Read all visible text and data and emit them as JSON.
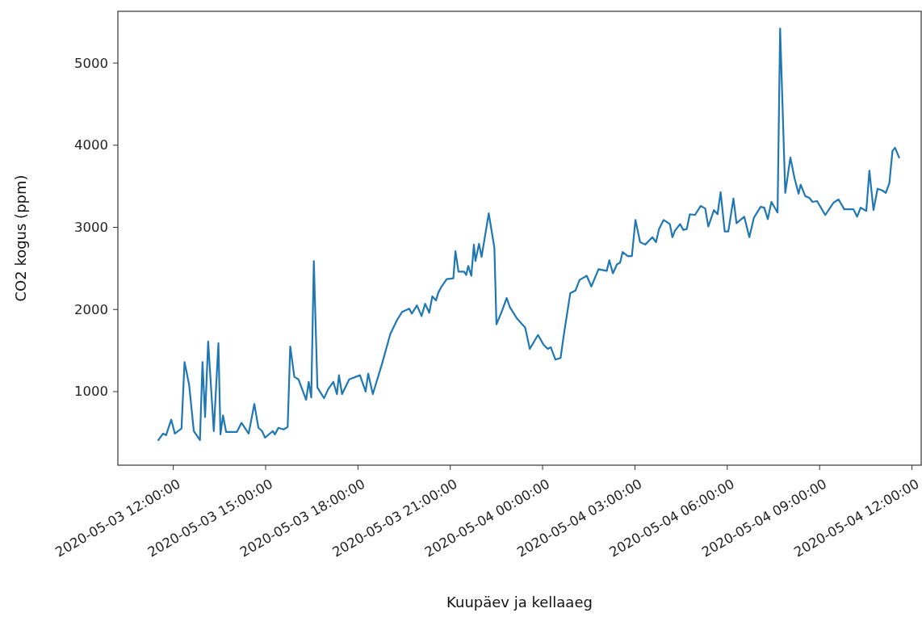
{
  "chart_data": {
    "type": "line",
    "xlabel": "Kuupäev ja kellaaeg",
    "ylabel": "CO2 kogus (ppm)",
    "x": [
      "2020-05-03T11:31",
      "2020-05-03T11:40",
      "2020-05-03T11:46",
      "2020-05-03T11:56",
      "2020-05-03T12:03",
      "2020-05-03T12:16",
      "2020-05-03T12:22",
      "2020-05-03T12:31",
      "2020-05-03T12:40",
      "2020-05-03T12:52",
      "2020-05-03T12:57",
      "2020-05-03T13:02",
      "2020-05-03T13:08",
      "2020-05-03T13:19",
      "2020-05-03T13:28",
      "2020-05-03T13:32",
      "2020-05-03T13:37",
      "2020-05-03T13:43",
      "2020-05-03T14:04",
      "2020-05-03T14:13",
      "2020-05-03T14:27",
      "2020-05-03T14:38",
      "2020-05-03T14:46",
      "2020-05-03T14:53",
      "2020-05-03T14:59",
      "2020-05-03T15:14",
      "2020-05-03T15:18",
      "2020-05-03T15:25",
      "2020-05-03T15:35",
      "2020-05-03T15:43",
      "2020-05-03T15:48",
      "2020-05-03T15:56",
      "2020-05-03T16:04",
      "2020-05-03T16:19",
      "2020-05-03T16:24",
      "2020-05-03T16:29",
      "2020-05-03T16:34",
      "2020-05-03T16:41",
      "2020-05-03T16:54",
      "2020-05-03T17:02",
      "2020-05-03T17:12",
      "2020-05-03T17:19",
      "2020-05-03T17:23",
      "2020-05-03T17:29",
      "2020-05-03T17:43",
      "2020-05-03T18:04",
      "2020-05-03T18:15",
      "2020-05-03T18:20",
      "2020-05-03T18:29",
      "2020-05-03T18:47",
      "2020-05-03T19:03",
      "2020-05-03T19:16",
      "2020-05-03T19:26",
      "2020-05-03T19:40",
      "2020-05-03T19:45",
      "2020-05-03T19:55",
      "2020-05-03T20:04",
      "2020-05-03T20:11",
      "2020-05-03T20:19",
      "2020-05-03T20:25",
      "2020-05-03T20:32",
      "2020-05-03T20:37",
      "2020-05-03T20:43",
      "2020-05-03T20:53",
      "2020-05-03T21:06",
      "2020-05-03T21:10",
      "2020-05-03T21:16",
      "2020-05-03T21:27",
      "2020-05-03T21:31",
      "2020-05-03T21:35",
      "2020-05-03T21:41",
      "2020-05-03T21:46",
      "2020-05-03T21:49",
      "2020-05-03T21:56",
      "2020-05-03T22:01",
      "2020-05-03T22:15",
      "2020-05-03T22:26",
      "2020-05-03T22:30",
      "2020-05-03T22:40",
      "2020-05-03T22:50",
      "2020-05-03T22:56",
      "2020-05-03T23:09",
      "2020-05-03T23:20",
      "2020-05-03T23:26",
      "2020-05-03T23:35",
      "2020-05-03T23:51",
      "2020-05-04T00:02",
      "2020-05-04T00:10",
      "2020-05-04T00:16",
      "2020-05-04T00:25",
      "2020-05-04T00:35",
      "2020-05-04T00:42",
      "2020-05-04T00:54",
      "2020-05-04T01:04",
      "2020-05-04T01:12",
      "2020-05-04T01:26",
      "2020-05-04T01:35",
      "2020-05-04T01:49",
      "2020-05-04T01:57",
      "2020-05-04T02:05",
      "2020-05-04T02:10",
      "2020-05-04T02:17",
      "2020-05-04T02:25",
      "2020-05-04T02:31",
      "2020-05-04T02:36",
      "2020-05-04T02:46",
      "2020-05-04T02:54",
      "2020-05-04T03:01",
      "2020-05-04T03:10",
      "2020-05-04T03:20",
      "2020-05-04T03:34",
      "2020-05-04T03:41",
      "2020-05-04T03:47",
      "2020-05-04T03:56",
      "2020-05-04T04:08",
      "2020-05-04T04:13",
      "2020-05-04T04:18",
      "2020-05-04T04:28",
      "2020-05-04T04:34",
      "2020-05-04T04:41",
      "2020-05-04T04:47",
      "2020-05-04T04:57",
      "2020-05-04T05:08",
      "2020-05-04T05:17",
      "2020-05-04T05:23",
      "2020-05-04T05:34",
      "2020-05-04T05:41",
      "2020-05-04T05:47",
      "2020-05-04T05:55",
      "2020-05-04T06:02",
      "2020-05-04T06:12",
      "2020-05-04T06:18",
      "2020-05-04T06:33",
      "2020-05-04T06:43",
      "2020-05-04T06:52",
      "2020-05-04T07:05",
      "2020-05-04T07:12",
      "2020-05-04T07:19",
      "2020-05-04T07:26",
      "2020-05-04T07:38",
      "2020-05-04T07:43",
      "2020-05-04T07:53",
      "2020-05-04T08:03",
      "2020-05-04T08:11",
      "2020-05-04T08:19",
      "2020-05-04T08:23",
      "2020-05-04T08:32",
      "2020-05-04T08:40",
      "2020-05-04T08:46",
      "2020-05-04T08:55",
      "2020-05-04T09:11",
      "2020-05-04T09:27",
      "2020-05-04T09:37",
      "2020-05-04T09:48",
      "2020-05-04T10:06",
      "2020-05-04T10:13",
      "2020-05-04T10:20",
      "2020-05-04T10:31",
      "2020-05-04T10:37",
      "2020-05-04T10:45",
      "2020-05-04T10:53",
      "2020-05-04T11:02",
      "2020-05-04T11:09",
      "2020-05-04T11:16",
      "2020-05-04T11:22",
      "2020-05-04T11:27",
      "2020-05-04T11:35"
    ],
    "series": [
      {
        "color": "#1f77b4",
        "values": [
          410,
          490,
          470,
          660,
          490,
          550,
          1360,
          1080,
          520,
          410,
          1360,
          690,
          1610,
          520,
          1590,
          480,
          710,
          510,
          510,
          620,
          490,
          850,
          560,
          520,
          440,
          520,
          480,
          560,
          540,
          570,
          1550,
          1180,
          1150,
          900,
          1120,
          930,
          2590,
          1050,
          920,
          1030,
          1120,
          970,
          1200,
          970,
          1150,
          1200,
          1000,
          1220,
          970,
          1340,
          1700,
          1870,
          1970,
          2010,
          1950,
          2050,
          1920,
          2070,
          1960,
          2160,
          2110,
          2210,
          2280,
          2370,
          2380,
          2710,
          2460,
          2460,
          2420,
          2530,
          2410,
          2790,
          2590,
          2800,
          2640,
          3170,
          2750,
          1820,
          1970,
          2140,
          2030,
          1900,
          1820,
          1780,
          1520,
          1690,
          1570,
          1520,
          1540,
          1390,
          1410,
          1720,
          2200,
          2230,
          2360,
          2410,
          2280,
          2490,
          2480,
          2470,
          2600,
          2440,
          2550,
          2570,
          2700,
          2650,
          2650,
          3090,
          2820,
          2790,
          2880,
          2820,
          2980,
          3090,
          3040,
          2880,
          2960,
          3040,
          2970,
          2980,
          3160,
          3150,
          3260,
          3230,
          3010,
          3210,
          3160,
          3430,
          2950,
          2950,
          3350,
          3050,
          3130,
          2880,
          3120,
          3250,
          3240,
          3100,
          3310,
          3180,
          5420,
          3420,
          3850,
          3600,
          3410,
          3520,
          3380,
          3360,
          3310,
          3320,
          3150,
          3300,
          3340,
          3220,
          3220,
          3130,
          3240,
          3200,
          3690,
          3210,
          3470,
          3450,
          3420,
          3540,
          3930,
          3970,
          3850
        ]
      }
    ],
    "xlim": [
      "2020-05-03T10:12",
      "2020-05-04T12:18"
    ],
    "ylim": [
      105,
      5630
    ],
    "xticks": [
      {
        "value": "2020-05-03T12:00",
        "label": "2020-05-03 12:00:00"
      },
      {
        "value": "2020-05-03T15:00",
        "label": "2020-05-03 15:00:00"
      },
      {
        "value": "2020-05-03T18:00",
        "label": "2020-05-03 18:00:00"
      },
      {
        "value": "2020-05-03T21:00",
        "label": "2020-05-03 21:00:00"
      },
      {
        "value": "2020-05-04T00:00",
        "label": "2020-05-04 00:00:00"
      },
      {
        "value": "2020-05-04T03:00",
        "label": "2020-05-04 03:00:00"
      },
      {
        "value": "2020-05-04T06:00",
        "label": "2020-05-04 06:00:00"
      },
      {
        "value": "2020-05-04T09:00",
        "label": "2020-05-04 09:00:00"
      },
      {
        "value": "2020-05-04T12:00",
        "label": "2020-05-04 12:00:00"
      }
    ],
    "yticks": [
      1000,
      2000,
      3000,
      4000,
      5000
    ]
  }
}
